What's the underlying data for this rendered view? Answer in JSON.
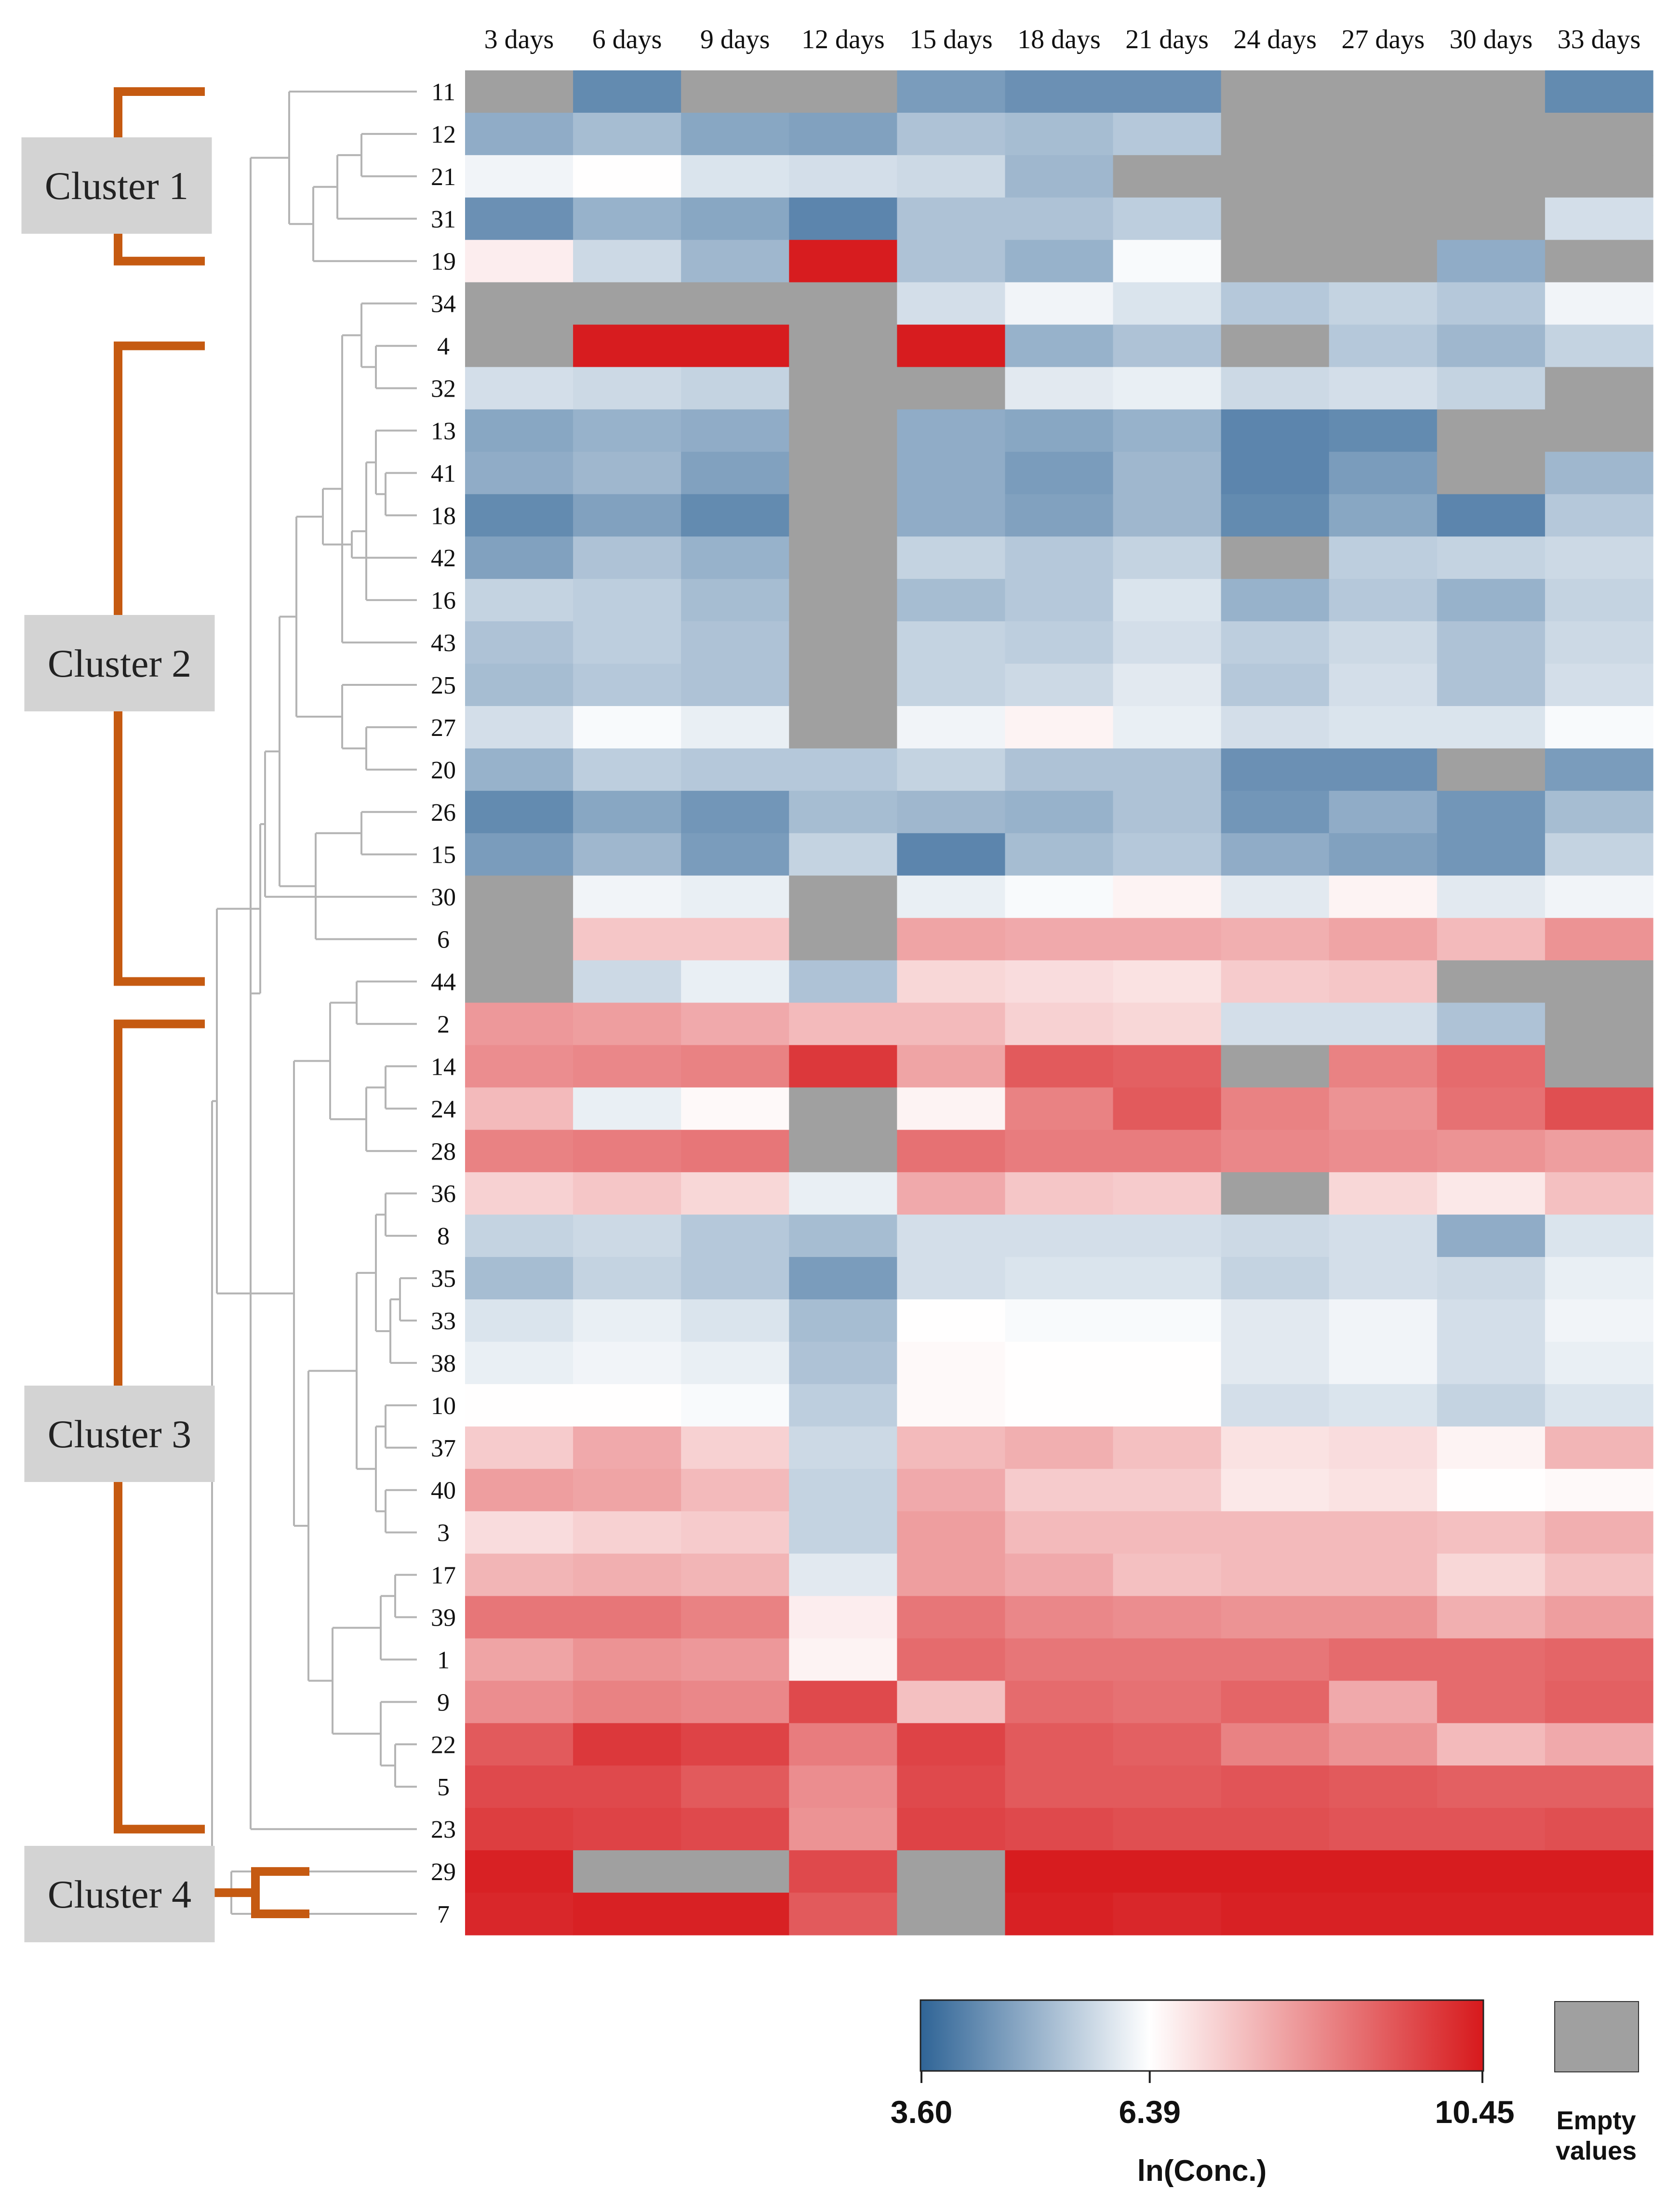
{
  "chart_data": {
    "type": "heatmap",
    "title": "",
    "columns": [
      "3 days",
      "6 days",
      "9 days",
      "12 days",
      "15 days",
      "18 days",
      "21 days",
      "24 days",
      "27 days",
      "30 days",
      "33 days"
    ],
    "rows": [
      "11",
      "12",
      "21",
      "31",
      "19",
      "34",
      "4",
      "32",
      "13",
      "41",
      "18",
      "42",
      "16",
      "43",
      "25",
      "27",
      "20",
      "26",
      "15",
      "30",
      "6",
      "44",
      "2",
      "14",
      "24",
      "28",
      "36",
      "8",
      "35",
      "33",
      "38",
      "10",
      "37",
      "40",
      "3",
      "17",
      "39",
      "1",
      "9",
      "22",
      "5",
      "23",
      "29",
      "7"
    ],
    "values": [
      [
        null,
        4.3,
        null,
        null,
        4.6,
        4.4,
        4.4,
        null,
        null,
        null,
        4.3
      ],
      [
        4.9,
        5.2,
        4.8,
        4.7,
        5.3,
        5.2,
        5.4,
        null,
        null,
        null,
        null
      ],
      [
        6.2,
        6.4,
        5.9,
        5.8,
        5.7,
        5.1,
        null,
        null,
        null,
        null,
        null
      ],
      [
        4.4,
        5.0,
        4.8,
        4.2,
        5.3,
        5.3,
        5.5,
        null,
        null,
        null,
        5.8
      ],
      [
        6.7,
        5.7,
        5.1,
        10.4,
        5.3,
        5.0,
        6.3,
        null,
        null,
        4.9,
        null
      ],
      [
        null,
        null,
        null,
        null,
        5.8,
        6.2,
        5.9,
        5.4,
        5.6,
        5.4,
        6.2
      ],
      [
        null,
        10.4,
        10.4,
        null,
        10.4,
        5.0,
        5.3,
        null,
        5.4,
        5.1,
        5.6
      ],
      [
        5.8,
        5.7,
        5.6,
        null,
        null,
        6.0,
        6.1,
        5.7,
        5.8,
        5.6,
        null
      ],
      [
        4.8,
        5.0,
        4.9,
        null,
        4.9,
        4.8,
        5.0,
        4.2,
        4.3,
        null,
        null
      ],
      [
        4.9,
        5.1,
        4.7,
        null,
        4.9,
        4.6,
        5.1,
        4.2,
        4.6,
        null,
        5.1
      ],
      [
        4.3,
        4.7,
        4.3,
        null,
        4.9,
        4.7,
        5.1,
        4.3,
        4.8,
        4.2,
        5.4
      ],
      [
        4.7,
        5.3,
        5.0,
        null,
        5.6,
        5.4,
        5.6,
        null,
        5.5,
        5.6,
        5.7
      ],
      [
        5.6,
        5.5,
        5.2,
        null,
        5.2,
        5.4,
        5.9,
        5.0,
        5.4,
        5.0,
        5.6
      ],
      [
        5.3,
        5.5,
        5.3,
        null,
        5.6,
        5.5,
        5.8,
        5.5,
        5.7,
        5.3,
        5.7
      ],
      [
        5.2,
        5.4,
        5.3,
        null,
        5.6,
        5.7,
        6.0,
        5.4,
        5.8,
        5.3,
        5.8
      ],
      [
        5.8,
        6.3,
        6.1,
        null,
        6.2,
        6.6,
        6.1,
        5.8,
        5.9,
        5.9,
        6.3
      ],
      [
        5.0,
        5.5,
        5.4,
        5.4,
        5.6,
        5.3,
        5.3,
        4.4,
        4.4,
        null,
        4.6
      ],
      [
        4.3,
        4.8,
        4.5,
        5.2,
        5.1,
        5.0,
        5.3,
        4.5,
        4.9,
        4.5,
        5.2
      ],
      [
        4.6,
        5.1,
        4.6,
        5.6,
        4.2,
        5.2,
        5.4,
        4.9,
        4.7,
        4.5,
        5.6
      ],
      [
        null,
        6.2,
        6.1,
        null,
        6.1,
        6.3,
        6.6,
        6.0,
        6.6,
        6.0,
        6.2
      ],
      [
        null,
        7.4,
        7.4,
        null,
        8.0,
        7.9,
        7.9,
        7.8,
        8.0,
        7.6,
        8.3
      ],
      [
        null,
        5.7,
        6.1,
        5.3,
        7.1,
        7.0,
        6.9,
        7.3,
        7.4,
        null,
        null
      ],
      [
        8.2,
        8.1,
        7.9,
        7.6,
        7.6,
        7.2,
        7.1,
        5.8,
        5.8,
        5.3,
        null
      ],
      [
        8.4,
        8.5,
        8.6,
        9.9,
        8.0,
        9.3,
        9.2,
        null,
        8.6,
        9.0,
        null
      ],
      [
        7.6,
        6.1,
        6.5,
        null,
        6.6,
        8.6,
        9.3,
        8.6,
        8.3,
        8.9,
        9.5
      ],
      [
        8.6,
        8.7,
        8.8,
        null,
        8.9,
        8.7,
        8.7,
        8.5,
        8.4,
        8.3,
        8.1
      ],
      [
        7.2,
        7.4,
        7.1,
        6.1,
        7.9,
        7.4,
        7.3,
        null,
        7.1,
        6.8,
        7.5
      ],
      [
        5.6,
        5.7,
        5.4,
        5.2,
        5.8,
        5.8,
        5.8,
        5.7,
        5.8,
        4.9,
        5.9
      ],
      [
        5.2,
        5.6,
        5.4,
        4.6,
        5.8,
        5.9,
        5.9,
        5.6,
        5.8,
        5.7,
        6.1
      ],
      [
        5.9,
        6.1,
        5.9,
        5.2,
        6.4,
        6.3,
        6.3,
        6.0,
        6.2,
        5.8,
        6.2
      ],
      [
        6.1,
        6.2,
        6.1,
        5.3,
        6.5,
        6.4,
        6.4,
        6.0,
        6.2,
        5.8,
        6.1
      ],
      [
        6.4,
        6.4,
        6.3,
        5.5,
        6.5,
        6.4,
        6.4,
        5.8,
        5.9,
        5.6,
        5.9
      ],
      [
        7.3,
        7.9,
        7.2,
        5.7,
        7.6,
        7.8,
        7.5,
        6.9,
        7.0,
        6.6,
        7.7
      ],
      [
        8.1,
        8.0,
        7.6,
        5.6,
        7.9,
        7.3,
        7.3,
        6.8,
        6.9,
        6.4,
        6.5
      ],
      [
        7.0,
        7.2,
        7.3,
        5.6,
        8.1,
        7.6,
        7.6,
        7.6,
        7.6,
        7.5,
        7.8
      ],
      [
        7.7,
        7.8,
        7.7,
        6.0,
        8.1,
        7.9,
        7.5,
        7.6,
        7.6,
        7.1,
        7.5
      ],
      [
        8.8,
        8.8,
        8.6,
        6.7,
        8.8,
        8.5,
        8.4,
        8.3,
        8.3,
        7.8,
        8.1
      ],
      [
        8.0,
        8.3,
        8.2,
        6.6,
        9.0,
        8.8,
        8.8,
        8.8,
        9.0,
        9.0,
        9.1
      ],
      [
        8.4,
        8.6,
        8.5,
        9.6,
        7.5,
        9.0,
        8.9,
        9.1,
        7.9,
        9.0,
        9.2
      ],
      [
        9.3,
        9.9,
        9.7,
        8.7,
        9.7,
        9.3,
        9.2,
        8.6,
        8.3,
        7.6,
        7.9
      ],
      [
        9.6,
        9.6,
        9.3,
        8.4,
        9.6,
        9.3,
        9.3,
        9.4,
        9.3,
        9.2,
        9.2
      ],
      [
        9.8,
        9.7,
        9.6,
        8.3,
        9.7,
        9.6,
        9.5,
        9.5,
        9.4,
        9.4,
        9.5
      ],
      [
        10.3,
        null,
        null,
        9.6,
        null,
        10.4,
        10.4,
        10.4,
        10.4,
        10.4,
        10.4
      ],
      [
        10.2,
        10.3,
        10.3,
        9.3,
        null,
        10.3,
        10.2,
        10.3,
        10.3,
        10.3,
        10.3
      ]
    ],
    "clusters": [
      {
        "label": "Cluster 1",
        "first_row": "11",
        "last_row": "19"
      },
      {
        "label": "Cluster 2",
        "first_row": "4",
        "last_row": "44"
      },
      {
        "label": "Cluster 3",
        "first_row": "2",
        "last_row": "23"
      },
      {
        "label": "Cluster 4",
        "first_row": "29",
        "last_row": "7"
      }
    ],
    "colorbar": {
      "min": 3.6,
      "mid": 6.39,
      "max": 10.45,
      "min_label": "3.60",
      "mid_label": "6.39",
      "max_label": "10.45",
      "title": "ln(Conc.)",
      "colors": [
        "#2f6496",
        "#ffffff",
        "#d7191c"
      ]
    },
    "empty_legend": {
      "label_line1": "Empty",
      "label_line2": "values",
      "color": "#a0a0a0"
    },
    "colors": {
      "bracket": "#c55a11",
      "dendrogram": "#b4b4b4",
      "cluster_box": "#d3d3d3"
    }
  }
}
